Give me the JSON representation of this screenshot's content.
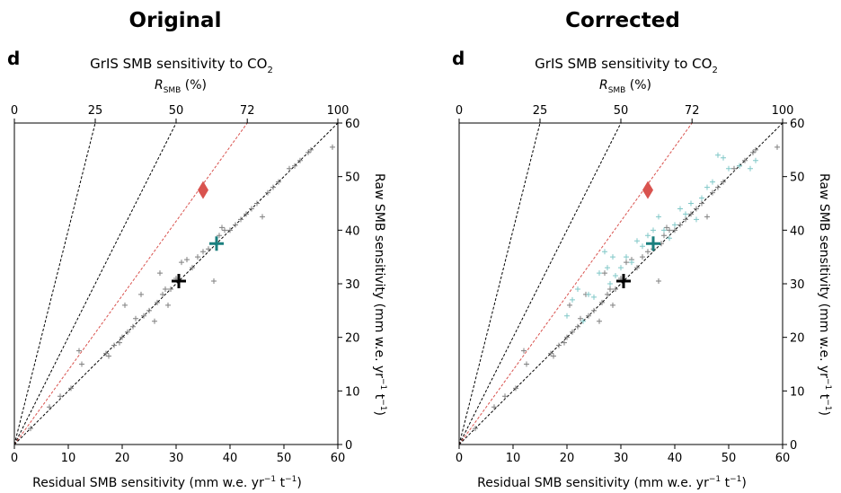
{
  "chart_data": [
    {
      "type": "scatter",
      "title": "Original",
      "panel_label": "d",
      "top_title": "GrIS SMB sensitivity to CO",
      "top_title_sub": "2",
      "top_axis_label_main": "R",
      "top_axis_label_sub": "SMB",
      "top_axis_label_suffix": " (%)",
      "top_ticks": [
        "0",
        "25",
        "50",
        "72",
        "100"
      ],
      "xlabel_main": "Residual SMB sensitivity (mm w.e. yr",
      "xlabel_sup1": "−1",
      "xlabel_mid": " t",
      "xlabel_sup2": "−1",
      "xlabel_end": ")",
      "ylabel_main": "Raw SMB sensitivity (mm w.e. yr",
      "ylabel_sup1": "−1",
      "ylabel_mid": " t",
      "ylabel_sup2": "−1",
      "ylabel_end": ")",
      "x_ticks": [
        "0",
        "10",
        "20",
        "30",
        "40",
        "50",
        "60"
      ],
      "y_ticks": [
        "0",
        "10",
        "20",
        "30",
        "40",
        "50",
        "60"
      ],
      "xlim": [
        0,
        60
      ],
      "ylim": [
        0,
        60
      ],
      "ratio_lines": [
        25,
        50,
        72,
        100
      ],
      "ratio_line_colors": [
        "#000000",
        "#000000",
        "#d9534f",
        "#000000"
      ],
      "series": [
        {
          "color": "#7f7f7f",
          "points": [
            [
              3,
              3
            ],
            [
              6.5,
              7
            ],
            [
              8.5,
              9
            ],
            [
              10.5,
              10.5
            ],
            [
              12,
              17.5
            ],
            [
              12.5,
              15
            ],
            [
              17,
              17
            ],
            [
              17.5,
              16.5
            ],
            [
              18.5,
              18.5
            ],
            [
              19.5,
              19
            ],
            [
              20,
              20
            ],
            [
              20.5,
              26
            ],
            [
              21,
              21
            ],
            [
              22,
              22
            ],
            [
              22.5,
              23.5
            ],
            [
              23.5,
              28
            ],
            [
              24,
              24
            ],
            [
              25,
              25
            ],
            [
              26,
              23
            ],
            [
              26.5,
              26.5
            ],
            [
              27,
              32
            ],
            [
              27.5,
              28
            ],
            [
              28,
              29
            ],
            [
              28.5,
              26
            ],
            [
              29,
              29
            ],
            [
              30,
              31
            ],
            [
              31,
              34
            ],
            [
              32,
              34.5
            ],
            [
              33,
              33
            ],
            [
              34,
              35
            ],
            [
              35,
              36
            ],
            [
              36,
              36.5
            ],
            [
              37,
              30.5
            ],
            [
              37.5,
              37.5
            ],
            [
              38,
              39
            ],
            [
              38.5,
              40.5
            ],
            [
              39,
              40
            ],
            [
              40,
              40
            ],
            [
              41,
              41
            ],
            [
              42,
              42
            ],
            [
              43,
              43
            ],
            [
              44,
              44
            ],
            [
              45,
              45
            ],
            [
              46,
              42.5
            ],
            [
              47,
              47
            ],
            [
              48,
              48
            ],
            [
              49,
              49
            ],
            [
              51,
              51.5
            ],
            [
              52,
              52
            ],
            [
              53,
              53
            ],
            [
              54.5,
              54.5
            ],
            [
              55,
              55
            ],
            [
              59,
              55.5
            ]
          ]
        }
      ],
      "markers": [
        {
          "name": "mean",
          "x": 30.5,
          "y": 30.5,
          "color": "#000000"
        },
        {
          "name": "observed",
          "x": 37.5,
          "y": 37.5,
          "color": "#1a7f7e"
        },
        {
          "name": "reference",
          "x": 35,
          "y": 47.5,
          "color": "#d9534f"
        }
      ]
    },
    {
      "type": "scatter",
      "title": "Corrected",
      "panel_label": "d",
      "top_title": "GrIS SMB sensitivity to CO",
      "top_title_sub": "2",
      "top_axis_label_main": "R",
      "top_axis_label_sub": "SMB",
      "top_axis_label_suffix": " (%)",
      "top_ticks": [
        "0",
        "25",
        "50",
        "72",
        "100"
      ],
      "xlabel_main": "Residual SMB sensitivity (mm w.e. yr",
      "xlabel_sup1": "−1",
      "xlabel_mid": " t",
      "xlabel_sup2": "−1",
      "xlabel_end": ")",
      "ylabel_main": "Raw SMB sensitivity (mm w.e. yr",
      "ylabel_sup1": "−1",
      "ylabel_mid": " t",
      "ylabel_sup2": "−1",
      "ylabel_end": ")",
      "x_ticks": [
        "0",
        "10",
        "20",
        "30",
        "40",
        "50",
        "60"
      ],
      "y_ticks": [
        "0",
        "10",
        "20",
        "30",
        "40",
        "50",
        "60"
      ],
      "xlim": [
        0,
        60
      ],
      "ylim": [
        0,
        60
      ],
      "ratio_lines": [
        25,
        50,
        72,
        100
      ],
      "ratio_line_colors": [
        "#000000",
        "#000000",
        "#d9534f",
        "#000000"
      ],
      "series": [
        {
          "color": "#7f7f7f",
          "points": [
            [
              3,
              3
            ],
            [
              6.5,
              7
            ],
            [
              8.5,
              9
            ],
            [
              10.5,
              10.5
            ],
            [
              12,
              17.5
            ],
            [
              12.5,
              15
            ],
            [
              17,
              17
            ],
            [
              17.5,
              16.5
            ],
            [
              18.5,
              18.5
            ],
            [
              19.5,
              19
            ],
            [
              20,
              20
            ],
            [
              20.5,
              26
            ],
            [
              21,
              21
            ],
            [
              22,
              22
            ],
            [
              22.5,
              23.5
            ],
            [
              23.5,
              28
            ],
            [
              24,
              24
            ],
            [
              25,
              25
            ],
            [
              26,
              23
            ],
            [
              26.5,
              26.5
            ],
            [
              27,
              32
            ],
            [
              27.5,
              28
            ],
            [
              28,
              29
            ],
            [
              28.5,
              26
            ],
            [
              29,
              29
            ],
            [
              30,
              31
            ],
            [
              31,
              34
            ],
            [
              32,
              34.5
            ],
            [
              33,
              33
            ],
            [
              34,
              35
            ],
            [
              35,
              36
            ],
            [
              36,
              36.5
            ],
            [
              37,
              30.5
            ],
            [
              37.5,
              37.5
            ],
            [
              38,
              39
            ],
            [
              38.5,
              40.5
            ],
            [
              39,
              40
            ],
            [
              40,
              40
            ],
            [
              41,
              41
            ],
            [
              42,
              42
            ],
            [
              43,
              43
            ],
            [
              44,
              44
            ],
            [
              45,
              45
            ],
            [
              46,
              42.5
            ],
            [
              47,
              47
            ],
            [
              48,
              48
            ],
            [
              49,
              49
            ],
            [
              51,
              51.5
            ],
            [
              52,
              52
            ],
            [
              53,
              53
            ],
            [
              54.5,
              54.5
            ],
            [
              55,
              55
            ],
            [
              59,
              55.5
            ]
          ]
        },
        {
          "color": "#7fc7c7",
          "points": [
            [
              20,
              24
            ],
            [
              21,
              27
            ],
            [
              22,
              29
            ],
            [
              23,
              23
            ],
            [
              24,
              28
            ],
            [
              25,
              27.5
            ],
            [
              26,
              32
            ],
            [
              27,
              36
            ],
            [
              27.5,
              33
            ],
            [
              28,
              30
            ],
            [
              28.5,
              35
            ],
            [
              29,
              31.5
            ],
            [
              30,
              33
            ],
            [
              31,
              35
            ],
            [
              32,
              34
            ],
            [
              33,
              38
            ],
            [
              34,
              37
            ],
            [
              35,
              39
            ],
            [
              36,
              40
            ],
            [
              37,
              42.5
            ],
            [
              38,
              40
            ],
            [
              39,
              38.5
            ],
            [
              40,
              41
            ],
            [
              41,
              44
            ],
            [
              42,
              43
            ],
            [
              43,
              45
            ],
            [
              44,
              42
            ],
            [
              45,
              46
            ],
            [
              46,
              48
            ],
            [
              47,
              49
            ],
            [
              48,
              54
            ],
            [
              49,
              53.5
            ],
            [
              50,
              51.5
            ],
            [
              52,
              52
            ],
            [
              54,
              51.5
            ],
            [
              55,
              53
            ]
          ]
        }
      ],
      "markers": [
        {
          "name": "mean",
          "x": 30.5,
          "y": 30.5,
          "color": "#000000"
        },
        {
          "name": "observed",
          "x": 36,
          "y": 37.5,
          "color": "#1a7f7e"
        },
        {
          "name": "reference",
          "x": 35,
          "y": 47.5,
          "color": "#d9534f"
        }
      ]
    }
  ]
}
